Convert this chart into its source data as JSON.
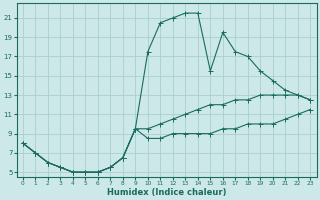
{
  "xlabel": "Humidex (Indice chaleur)",
  "bg_color": "#cce8e8",
  "grid_color": "#aad0d0",
  "line_color": "#1a6b5e",
  "xlim": [
    -0.5,
    23.5
  ],
  "ylim": [
    4.5,
    22.5
  ],
  "yticks": [
    5,
    7,
    9,
    11,
    13,
    15,
    17,
    19,
    21
  ],
  "xticks": [
    0,
    1,
    2,
    3,
    4,
    5,
    6,
    7,
    8,
    9,
    10,
    11,
    12,
    13,
    14,
    15,
    16,
    17,
    18,
    19,
    20,
    21,
    22,
    23
  ],
  "line1_x": [
    0,
    1,
    2,
    3,
    4,
    5,
    6,
    7,
    8,
    9,
    10,
    11,
    12,
    13,
    14,
    15,
    16,
    17,
    18,
    19,
    20,
    21,
    22,
    23
  ],
  "line1_y": [
    8,
    7,
    6,
    5.5,
    5,
    5,
    5,
    5.5,
    6.5,
    9.5,
    17.5,
    20.5,
    21,
    21.5,
    21.5,
    15.5,
    19.5,
    17.5,
    17,
    15.5,
    14.5,
    13.5,
    13,
    12.5
  ],
  "line2_x": [
    0,
    1,
    2,
    3,
    4,
    5,
    6,
    7,
    8,
    9,
    10,
    11,
    12,
    13,
    14,
    15,
    16,
    17,
    18,
    19,
    20,
    21,
    22,
    23
  ],
  "line2_y": [
    8,
    7,
    6,
    5.5,
    5,
    5,
    5,
    5.5,
    6.5,
    9.5,
    9.5,
    10,
    10.5,
    11,
    11.5,
    12,
    12,
    12.5,
    12.5,
    13,
    13,
    13,
    13,
    12.5
  ],
  "line3_x": [
    0,
    1,
    2,
    3,
    4,
    5,
    6,
    7,
    8,
    9,
    10,
    11,
    12,
    13,
    14,
    15,
    16,
    17,
    18,
    19,
    20,
    21,
    22,
    23
  ],
  "line3_y": [
    8,
    7,
    6,
    5.5,
    5,
    5,
    5,
    5.5,
    6.5,
    9.5,
    8.5,
    8.5,
    9,
    9,
    9,
    9,
    9.5,
    9.5,
    10,
    10,
    10,
    10.5,
    11,
    11.5
  ]
}
